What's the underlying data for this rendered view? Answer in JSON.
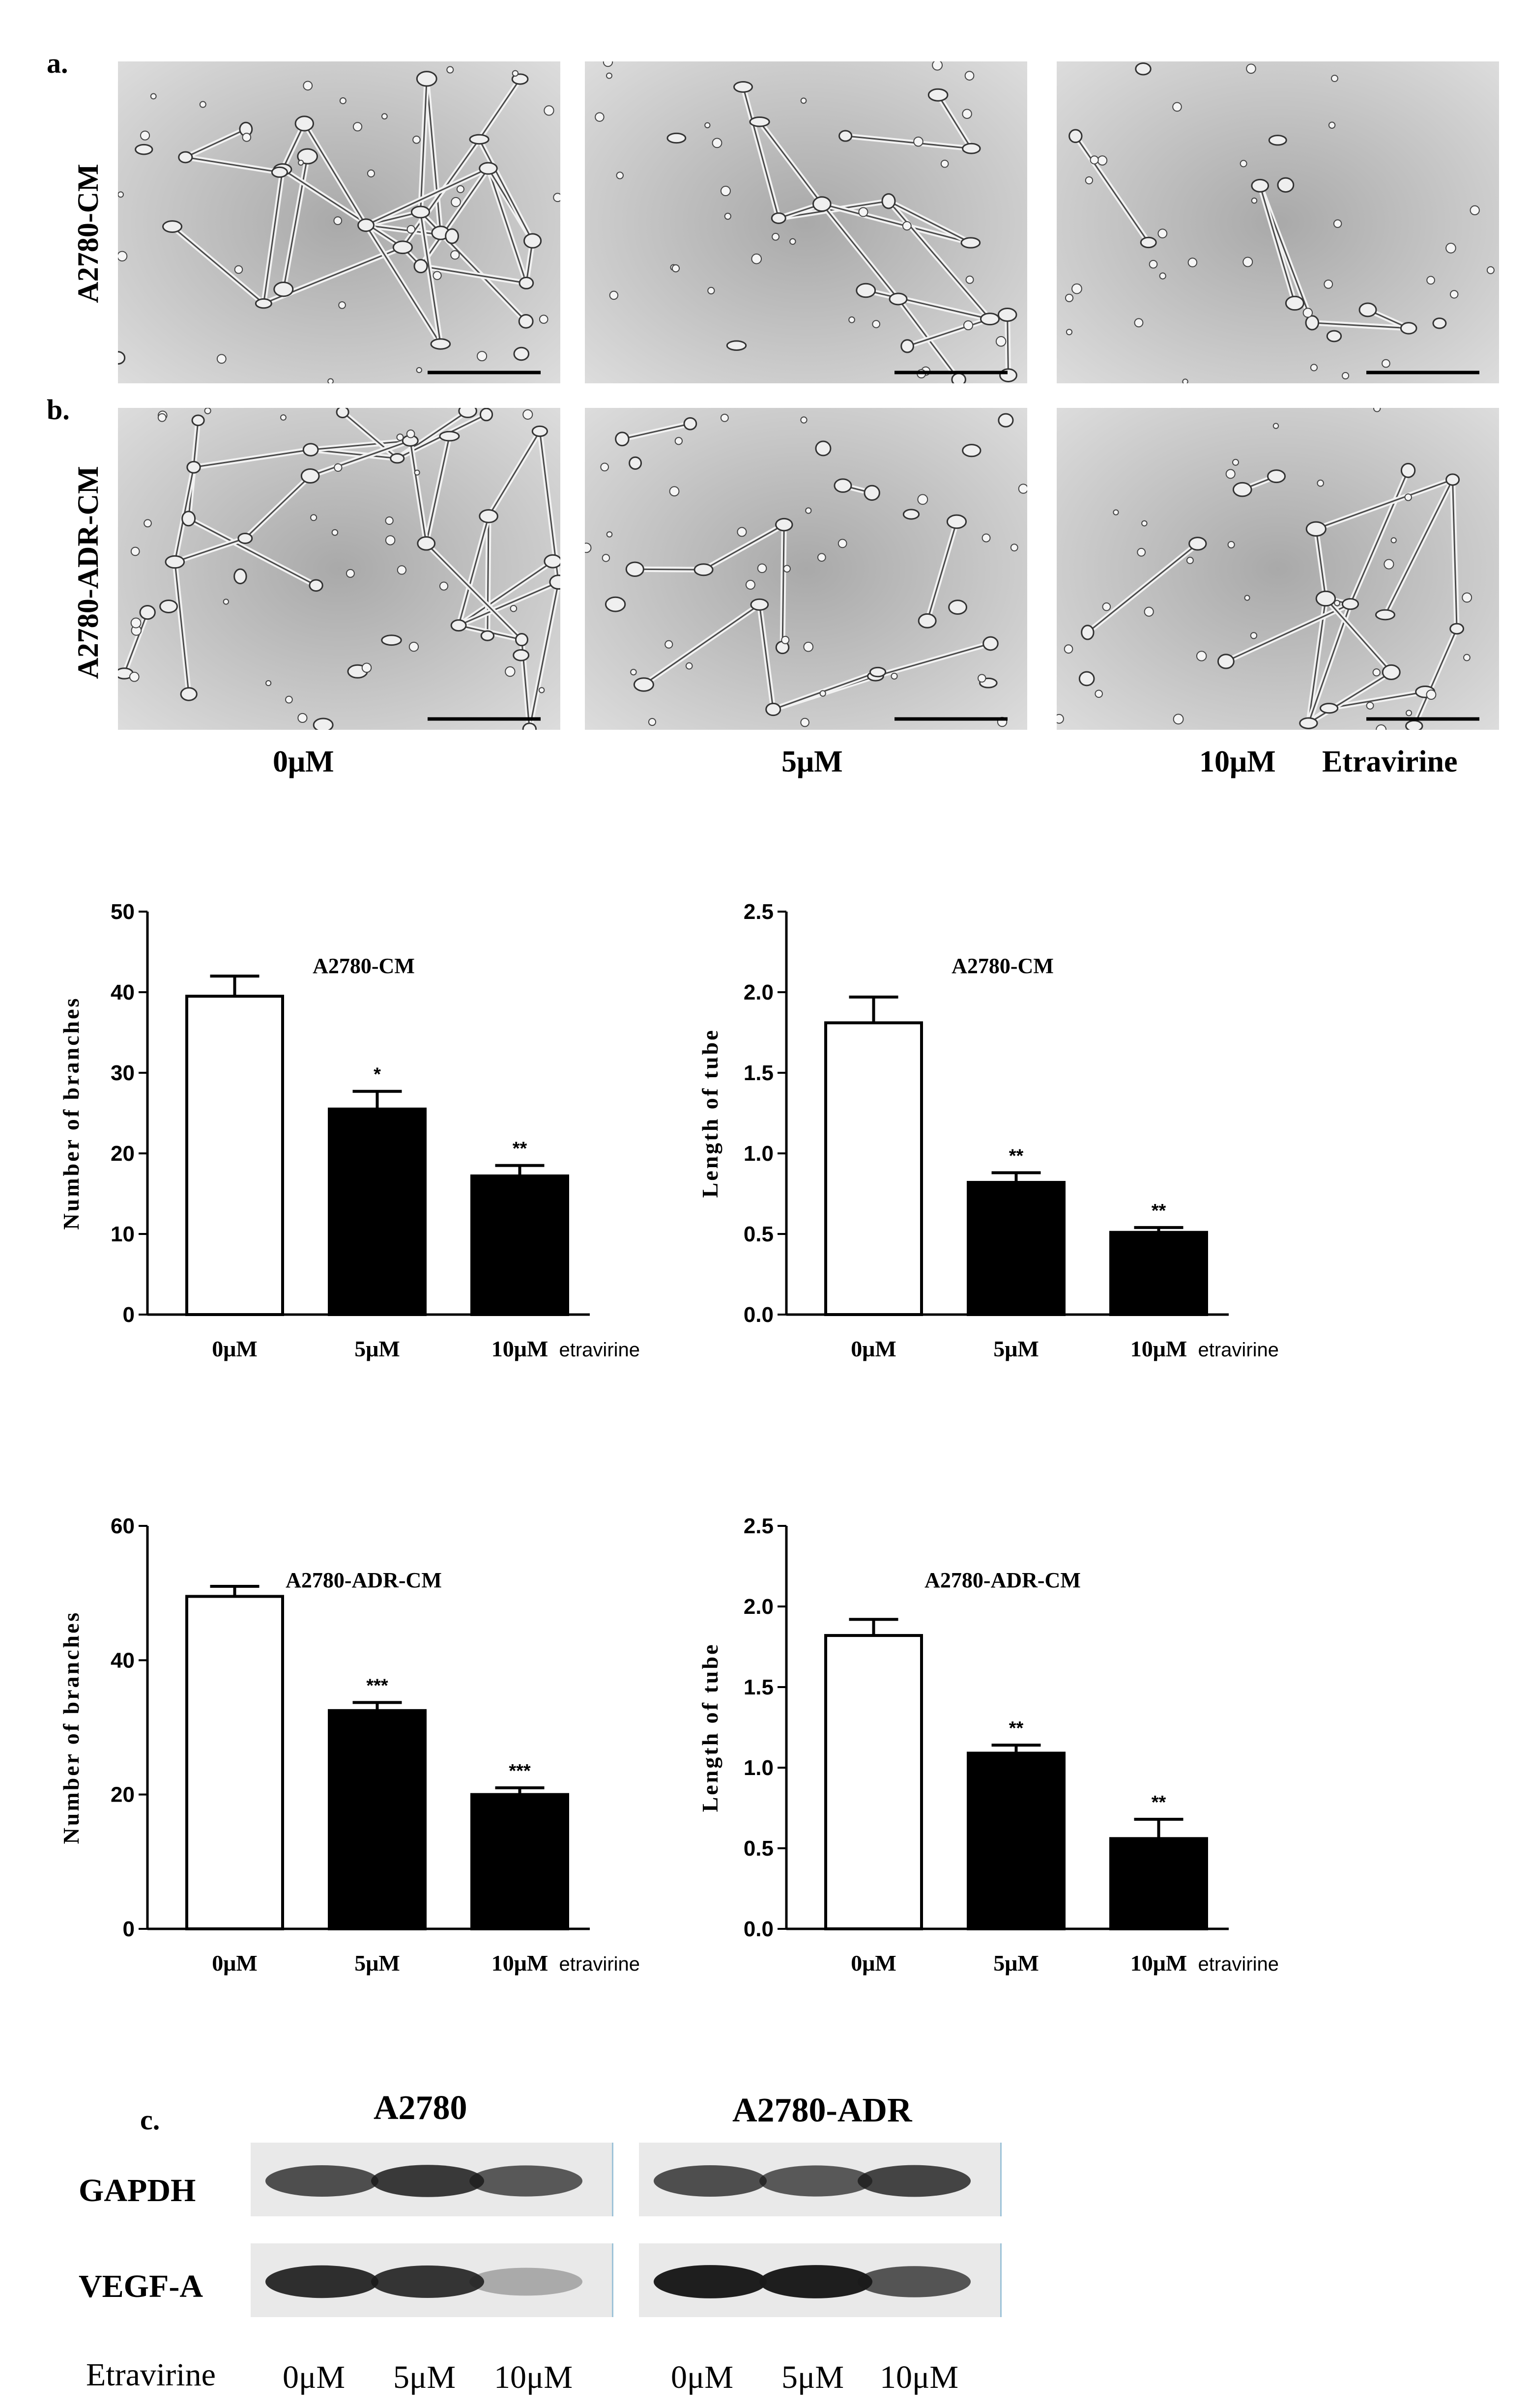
{
  "panel_a": {
    "letter": "a.",
    "row_label": "A2780-CM"
  },
  "panel_b": {
    "letter": "b.",
    "row_label": "A2780-ADR-CM"
  },
  "micrograph_concentrations": [
    "0μM",
    "5μM",
    "10μM"
  ],
  "micrograph_drug_label": "Etravirine",
  "chart_data": [
    {
      "type": "bar",
      "title": "A2780-CM",
      "ylabel": "Number of branches",
      "xlabel": "",
      "categories": [
        "0μM",
        "5μM",
        "10μM"
      ],
      "x_suffix": "etravirine",
      "values": [
        39.5,
        25.5,
        17.2
      ],
      "errors": [
        2.5,
        2.2,
        1.3
      ],
      "significance": [
        "",
        "*",
        "**"
      ],
      "ylim": [
        0,
        50
      ],
      "yticks": [
        "0",
        "10",
        "20",
        "30",
        "40",
        "50"
      ],
      "bar_colors": [
        "#ffffff",
        "#000000",
        "#000000"
      ]
    },
    {
      "type": "bar",
      "title": "A2780-CM",
      "ylabel": "Length of tube",
      "xlabel": "",
      "categories": [
        "0μM",
        "5μM",
        "10μM"
      ],
      "x_suffix": "etravirine",
      "values": [
        1.81,
        0.82,
        0.51
      ],
      "errors": [
        0.16,
        0.06,
        0.03
      ],
      "significance": [
        "",
        "**",
        "**"
      ],
      "ylim": [
        0,
        2.5
      ],
      "yticks": [
        "0.0",
        "0.5",
        "1.0",
        "1.5",
        "2.0",
        "2.5"
      ],
      "bar_colors": [
        "#ffffff",
        "#000000",
        "#000000"
      ]
    },
    {
      "type": "bar",
      "title": "A2780-ADR-CM",
      "ylabel": "Number of branches",
      "xlabel": "",
      "categories": [
        "0μM",
        "5μM",
        "10μM"
      ],
      "x_suffix": "etravirine",
      "values": [
        49.5,
        32.5,
        20.0
      ],
      "errors": [
        1.5,
        1.2,
        1.0
      ],
      "significance": [
        "",
        "***",
        "***"
      ],
      "ylim": [
        0,
        60
      ],
      "yticks": [
        "0",
        "20",
        "40",
        "60"
      ],
      "bar_colors": [
        "#ffffff",
        "#000000",
        "#000000"
      ]
    },
    {
      "type": "bar",
      "title": "A2780-ADR-CM",
      "ylabel": "Length of tube",
      "xlabel": "",
      "categories": [
        "0μM",
        "5μM",
        "10μM"
      ],
      "x_suffix": "etravirine",
      "values": [
        1.82,
        1.09,
        0.56
      ],
      "errors": [
        0.1,
        0.05,
        0.12
      ],
      "significance": [
        "",
        "**",
        "**"
      ],
      "ylim": [
        0,
        2.5
      ],
      "yticks": [
        "0.0",
        "0.5",
        "1.0",
        "1.5",
        "2.0",
        "2.5"
      ],
      "bar_colors": [
        "#ffffff",
        "#000000",
        "#000000"
      ]
    }
  ],
  "panel_c": {
    "letter": "c.",
    "groups": [
      "A2780",
      "A2780-ADR"
    ],
    "rows": [
      "GAPDH",
      "VEGF-A"
    ],
    "lane_row_label": "Etravirine",
    "lanes": [
      "0μM",
      "5μM",
      "10μM"
    ],
    "band_intensity": {
      "GAPDH": [
        [
          0.75,
          0.85,
          0.7
        ],
        [
          0.75,
          0.7,
          0.8
        ]
      ],
      "VEGF-A": [
        [
          0.9,
          0.88,
          0.3
        ],
        [
          0.98,
          0.98,
          0.72
        ]
      ]
    }
  }
}
